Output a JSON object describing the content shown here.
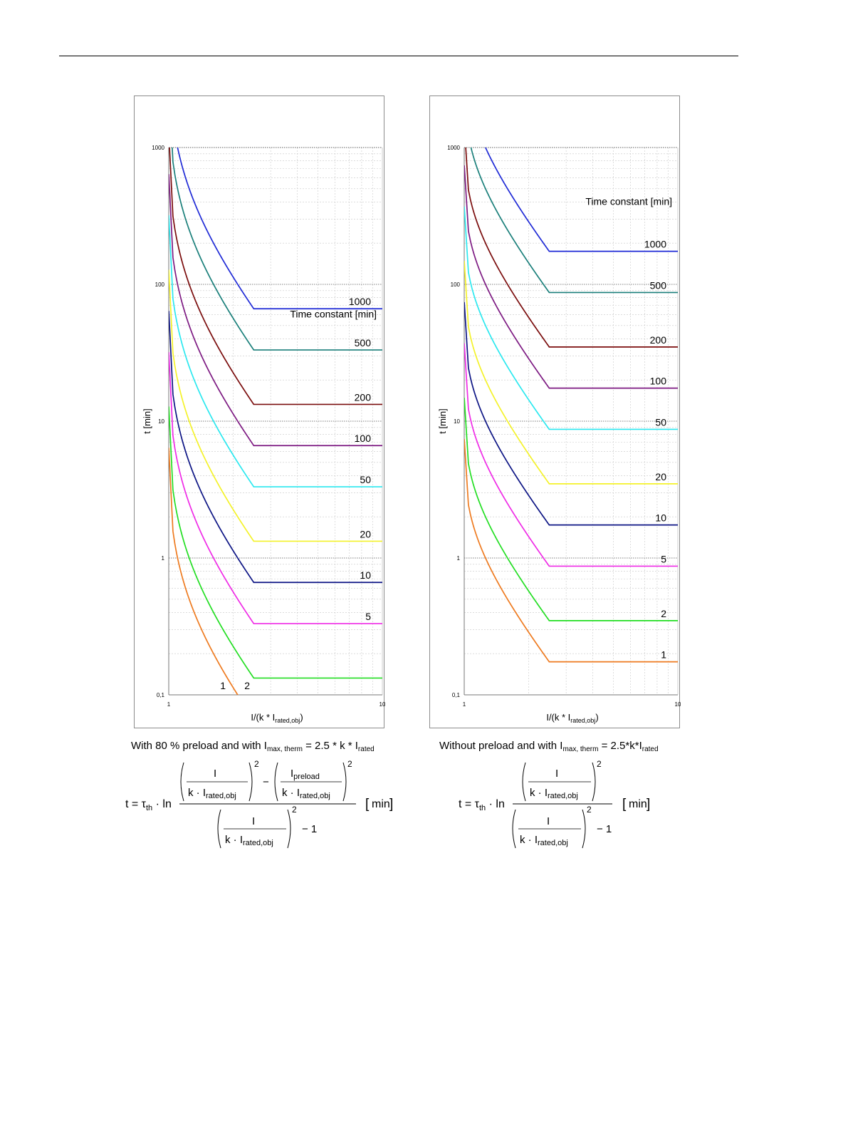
{
  "chart_data": [
    {
      "type": "line",
      "xscale": "log",
      "yscale": "log",
      "xlim": [
        1,
        10
      ],
      "ylim": [
        0.1,
        1000
      ],
      "ylabel": "t [min]",
      "xlabel": {
        "main": "I/(k * I",
        "sub": "rated,obj",
        "tail": ")"
      },
      "xticks": [
        "1",
        "10"
      ],
      "yticks": [
        "0,1",
        "1",
        "10",
        "100",
        "1000"
      ],
      "legend_title": "Time constant [min]",
      "grid": true,
      "preload": 0.8,
      "i_max_therm": 2.5,
      "series": [
        {
          "name": "1000",
          "tau": 1000,
          "color": "#1f2ad6"
        },
        {
          "name": "500",
          "tau": 500,
          "color": "#1a7f7a"
        },
        {
          "name": "200",
          "tau": 200,
          "color": "#7a0c0c"
        },
        {
          "name": "100",
          "tau": 100,
          "color": "#7d1a82"
        },
        {
          "name": "50",
          "tau": 50,
          "color": "#2be8ef"
        },
        {
          "name": "20",
          "tau": 20,
          "color": "#f4f22a"
        },
        {
          "name": "10",
          "tau": 10,
          "color": "#0c1484"
        },
        {
          "name": "5",
          "tau": 5,
          "color": "#ef2be6"
        },
        {
          "name": "2",
          "tau": 2,
          "color": "#22de22"
        },
        {
          "name": "1",
          "tau": 1,
          "color": "#ee7a1f"
        }
      ]
    },
    {
      "type": "line",
      "xscale": "log",
      "yscale": "log",
      "xlim": [
        1,
        10
      ],
      "ylim": [
        0.1,
        1000
      ],
      "ylabel": "t [min]",
      "xlabel": {
        "main": "I/(k * I",
        "sub": "rated,obj",
        "tail": ")"
      },
      "xticks": [
        "1",
        "10"
      ],
      "yticks": [
        "0,1",
        "1",
        "10",
        "100",
        "1000"
      ],
      "legend_title": "Time constant [min]",
      "grid": true,
      "preload": 0,
      "i_max_therm": 2.5,
      "series": [
        {
          "name": "1000",
          "tau": 1000,
          "color": "#1f2ad6"
        },
        {
          "name": "500",
          "tau": 500,
          "color": "#1a7f7a"
        },
        {
          "name": "200",
          "tau": 200,
          "color": "#7a0c0c"
        },
        {
          "name": "100",
          "tau": 100,
          "color": "#7d1a82"
        },
        {
          "name": "50",
          "tau": 50,
          "color": "#2be8ef"
        },
        {
          "name": "20",
          "tau": 20,
          "color": "#f4f22a"
        },
        {
          "name": "10",
          "tau": 10,
          "color": "#0c1484"
        },
        {
          "name": "5",
          "tau": 5,
          "color": "#ef2be6"
        },
        {
          "name": "2",
          "tau": 2,
          "color": "#22de22"
        },
        {
          "name": "1",
          "tau": 1,
          "color": "#ee7a1f"
        }
      ]
    }
  ],
  "captions": {
    "left": {
      "pre": "With 80 % preload and with I",
      "sub": "max, therm",
      "mid": " = 2.5 * k * I",
      "sub2": "rated"
    },
    "right": {
      "pre": "Without preload and with I",
      "sub": "max, therm",
      "mid": " = 2.5*k*I",
      "sub2": "rated"
    }
  },
  "formula": {
    "lhs": "t = τ",
    "tau_sub": "th",
    "ln": "· ln",
    "num_I": "I",
    "den_k": "k · I",
    "den_sub": "rated,obj",
    "preload_I": "I",
    "preload_sub": "preload",
    "exp": "2",
    "minus": "−",
    "minus_one": "− 1",
    "unit": "min"
  }
}
